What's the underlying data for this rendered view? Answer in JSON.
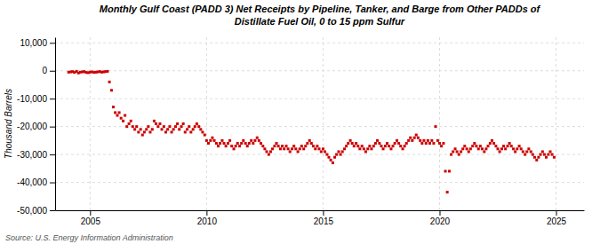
{
  "chart_data": {
    "type": "scatter",
    "title": "Monthly Gulf Coast (PADD 3) Net Receipts by Pipeline, Tanker, and Barge from Other PADDs of",
    "subtitle": "Distillate Fuel Oil, 0 to 15 ppm Sulfur",
    "y_label": "Thousand Barrels",
    "annotations": [
      "Source: U.S. Energy Information Administration"
    ],
    "color": "#cc0000",
    "marker": "square",
    "grid": true,
    "xlim": [
      2003.5,
      2026.2
    ],
    "xticks": [
      2005,
      2010,
      2015,
      2020,
      2025
    ],
    "ylim": [
      -50000,
      12000
    ],
    "yticks": [
      {
        "value": 10000,
        "label": "10,000"
      },
      0,
      {
        "value": -10000,
        "label": "-10,000"
      },
      {
        "value": -20000,
        "label": "-20,000"
      },
      {
        "value": -30000,
        "label": "-30,000"
      },
      {
        "value": -40000,
        "label": "-40,000"
      },
      {
        "value": -50000,
        "label": "-50,000"
      }
    ],
    "x": [
      2004.08,
      2004.17,
      2004.25,
      2004.33,
      2004.42,
      2004.5,
      2004.58,
      2004.67,
      2004.75,
      2004.83,
      2004.92,
      2005.0,
      2005.08,
      2005.17,
      2005.25,
      2005.33,
      2005.42,
      2005.5,
      2005.58,
      2005.67,
      2005.75,
      2005.83,
      2005.92,
      2006.0,
      2006.08,
      2006.17,
      2006.25,
      2006.33,
      2006.42,
      2006.5,
      2006.58,
      2006.67,
      2006.75,
      2006.83,
      2006.92,
      2007.0,
      2007.08,
      2007.17,
      2007.25,
      2007.33,
      2007.42,
      2007.5,
      2007.58,
      2007.67,
      2007.75,
      2007.83,
      2007.92,
      2008.0,
      2008.08,
      2008.17,
      2008.25,
      2008.33,
      2008.42,
      2008.5,
      2008.58,
      2008.67,
      2008.75,
      2008.83,
      2008.92,
      2009.0,
      2009.08,
      2009.17,
      2009.25,
      2009.33,
      2009.42,
      2009.5,
      2009.58,
      2009.67,
      2009.75,
      2009.83,
      2009.92,
      2010.0,
      2010.08,
      2010.17,
      2010.25,
      2010.33,
      2010.42,
      2010.5,
      2010.58,
      2010.67,
      2010.75,
      2010.83,
      2010.92,
      2011.0,
      2011.08,
      2011.17,
      2011.25,
      2011.33,
      2011.42,
      2011.5,
      2011.58,
      2011.67,
      2011.75,
      2011.83,
      2011.92,
      2012.0,
      2012.08,
      2012.17,
      2012.25,
      2012.33,
      2012.42,
      2012.5,
      2012.58,
      2012.67,
      2012.75,
      2012.83,
      2012.92,
      2013.0,
      2013.08,
      2013.17,
      2013.25,
      2013.33,
      2013.42,
      2013.5,
      2013.58,
      2013.67,
      2013.75,
      2013.83,
      2013.92,
      2014.0,
      2014.08,
      2014.17,
      2014.25,
      2014.33,
      2014.42,
      2014.5,
      2014.58,
      2014.67,
      2014.75,
      2014.83,
      2014.92,
      2015.0,
      2015.08,
      2015.17,
      2015.25,
      2015.33,
      2015.42,
      2015.5,
      2015.58,
      2015.67,
      2015.75,
      2015.83,
      2015.92,
      2016.0,
      2016.08,
      2016.17,
      2016.25,
      2016.33,
      2016.42,
      2016.5,
      2016.58,
      2016.67,
      2016.75,
      2016.83,
      2016.92,
      2017.0,
      2017.08,
      2017.17,
      2017.25,
      2017.33,
      2017.42,
      2017.5,
      2017.58,
      2017.67,
      2017.75,
      2017.83,
      2017.92,
      2018.0,
      2018.08,
      2018.17,
      2018.25,
      2018.33,
      2018.42,
      2018.5,
      2018.58,
      2018.67,
      2018.75,
      2018.83,
      2018.92,
      2019.0,
      2019.08,
      2019.17,
      2019.25,
      2019.33,
      2019.42,
      2019.5,
      2019.58,
      2019.67,
      2019.75,
      2019.83,
      2019.92,
      2020.0,
      2020.08,
      2020.17,
      2020.25,
      2020.33,
      2020.42,
      2020.5,
      2020.58,
      2020.67,
      2020.75,
      2020.83,
      2020.92,
      2021.0,
      2021.08,
      2021.17,
      2021.25,
      2021.33,
      2021.42,
      2021.5,
      2021.58,
      2021.67,
      2021.75,
      2021.83,
      2021.92,
      2022.0,
      2022.08,
      2022.17,
      2022.25,
      2022.33,
      2022.42,
      2022.5,
      2022.58,
      2022.67,
      2022.75,
      2022.83,
      2022.92,
      2023.0,
      2023.08,
      2023.17,
      2023.25,
      2023.33,
      2023.42,
      2023.5,
      2023.58,
      2023.67,
      2023.75,
      2023.83,
      2023.92,
      2024.0,
      2024.08,
      2024.17,
      2024.25,
      2024.33,
      2024.42,
      2024.5,
      2024.58,
      2024.67,
      2024.75,
      2024.83,
      2024.92
    ],
    "values": [
      -500,
      -400,
      -300,
      -600,
      -200,
      -800,
      -500,
      -400,
      -300,
      -600,
      -700,
      -500,
      -400,
      -600,
      -500,
      -400,
      -300,
      -500,
      -400,
      -300,
      -200,
      -4000,
      -7000,
      -13000,
      -15000,
      -16000,
      -15000,
      -17000,
      -18000,
      -16000,
      -20000,
      -19000,
      -18000,
      -20000,
      -21000,
      -20000,
      -22000,
      -21000,
      -23000,
      -22000,
      -21000,
      -20000,
      -22000,
      -21000,
      -18000,
      -19000,
      -20000,
      -19000,
      -21000,
      -20000,
      -22000,
      -21000,
      -20000,
      -22000,
      -21000,
      -20000,
      -19000,
      -21000,
      -20000,
      -19000,
      -22000,
      -21000,
      -20000,
      -22000,
      -21000,
      -20000,
      -19000,
      -20000,
      -21000,
      -22000,
      -23000,
      -25000,
      -26000,
      -25000,
      -24000,
      -25000,
      -26000,
      -27000,
      -26000,
      -25000,
      -26000,
      -27000,
      -26000,
      -25000,
      -27000,
      -28000,
      -27000,
      -26000,
      -27000,
      -26000,
      -25000,
      -26000,
      -27000,
      -26000,
      -25000,
      -26000,
      -25000,
      -24000,
      -25000,
      -26000,
      -27000,
      -28000,
      -29000,
      -30000,
      -29000,
      -28000,
      -27000,
      -26000,
      -27000,
      -28000,
      -27000,
      -28000,
      -27000,
      -28000,
      -29000,
      -28000,
      -27000,
      -28000,
      -29000,
      -28000,
      -27000,
      -28000,
      -27000,
      -26000,
      -25000,
      -26000,
      -27000,
      -28000,
      -27000,
      -28000,
      -29000,
      -28000,
      -29000,
      -30000,
      -31000,
      -32000,
      -33000,
      -31000,
      -30000,
      -29000,
      -30000,
      -29000,
      -28000,
      -27000,
      -26000,
      -25000,
      -26000,
      -27000,
      -26000,
      -27000,
      -28000,
      -27000,
      -28000,
      -29000,
      -28000,
      -27000,
      -28000,
      -27000,
      -26000,
      -25000,
      -26000,
      -27000,
      -28000,
      -27000,
      -26000,
      -27000,
      -28000,
      -27000,
      -26000,
      -25000,
      -26000,
      -27000,
      -28000,
      -27000,
      -26000,
      -25000,
      -24000,
      -25000,
      -24000,
      -23000,
      -24000,
      -25000,
      -26000,
      -25000,
      -26000,
      -25000,
      -26000,
      -25000,
      -26000,
      -20000,
      -25000,
      -26000,
      -27000,
      -26000,
      -36000,
      -43500,
      -36000,
      -30000,
      -29000,
      -28000,
      -29000,
      -30000,
      -29000,
      -28000,
      -27000,
      -28000,
      -29000,
      -28000,
      -27000,
      -26000,
      -27000,
      -28000,
      -27000,
      -28000,
      -29000,
      -28000,
      -27000,
      -26000,
      -25000,
      -26000,
      -27000,
      -28000,
      -29000,
      -28000,
      -27000,
      -28000,
      -27000,
      -26000,
      -27000,
      -28000,
      -29000,
      -28000,
      -27000,
      -28000,
      -29000,
      -30000,
      -29000,
      -28000,
      -29000,
      -30000,
      -31000,
      -32000,
      -31000,
      -30000,
      -29000,
      -30000,
      -31000,
      -30000,
      -29000,
      -30000,
      -31000
    ]
  }
}
